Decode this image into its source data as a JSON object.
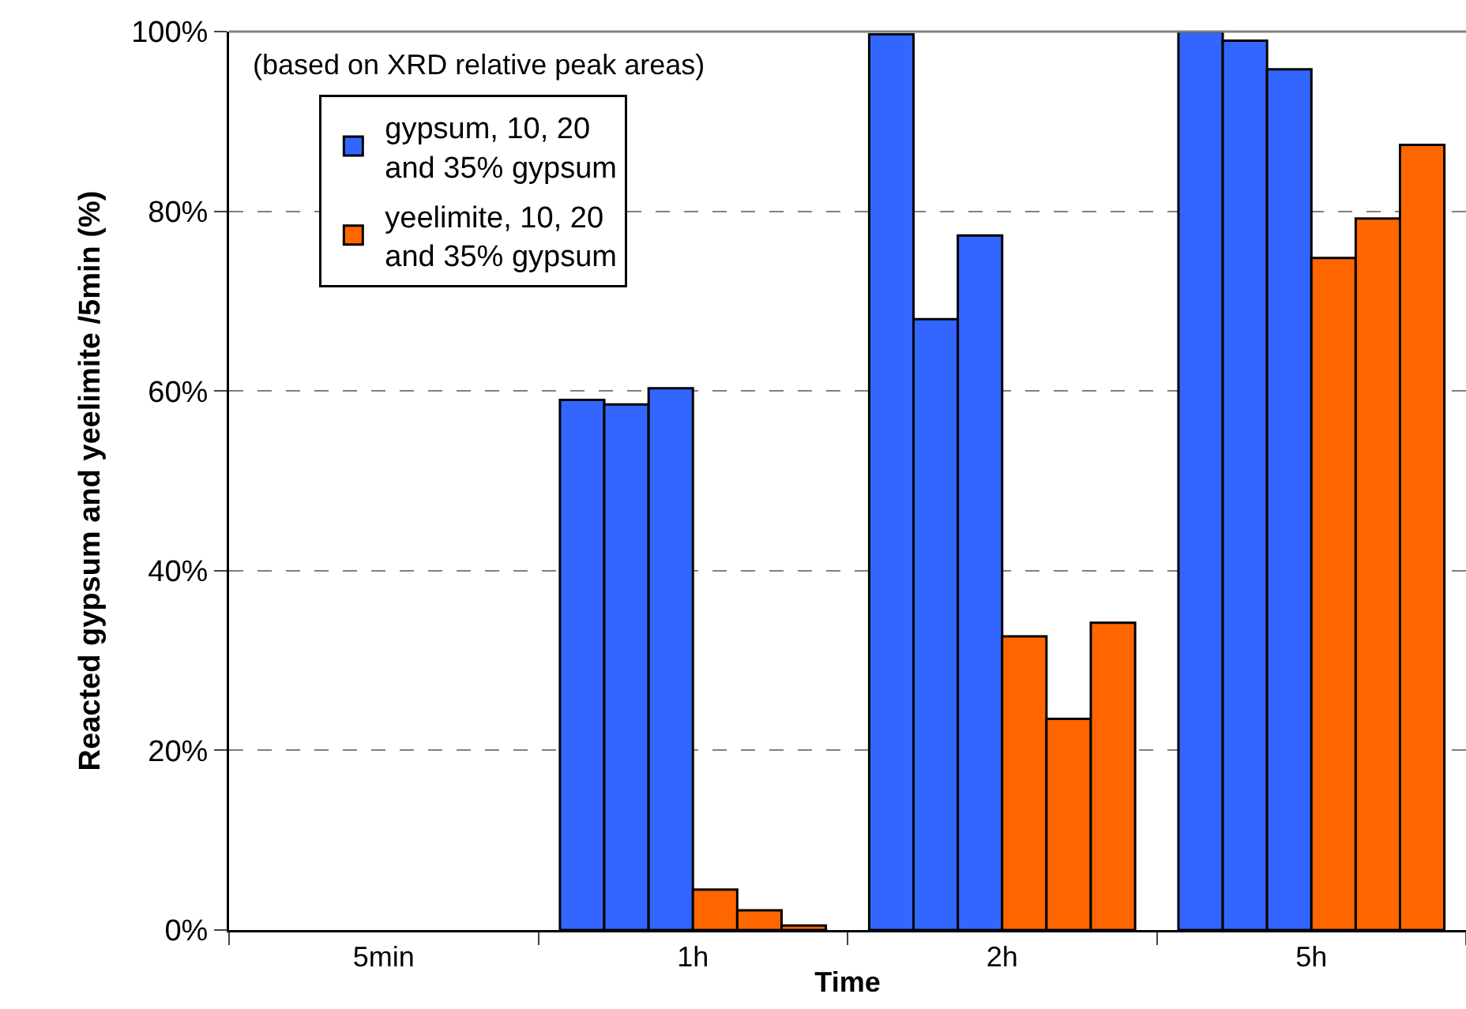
{
  "chart_data": {
    "type": "bar",
    "xlabel": "Time",
    "ylabel": "Reacted gypsum and yeelimite /5min (%)",
    "categories": [
      "5min",
      "1h",
      "2h",
      "5h"
    ],
    "series": [
      {
        "name": "gypsum, 10, 20 and 35% gypsum",
        "color": "#3366ff",
        "values": [
          null,
          59,
          99.7,
          100
        ]
      },
      {
        "color": "#3366ff",
        "values": [
          null,
          58.5,
          68,
          99
        ]
      },
      {
        "color": "#3366ff",
        "values": [
          null,
          60.3,
          77.3,
          95.8
        ]
      },
      {
        "name": "yeelimite, 10, 20 and 35% gypsum",
        "color": "#ff6600",
        "values": [
          null,
          4.5,
          32.7,
          74.8
        ]
      },
      {
        "color": "#ff6600",
        "values": [
          null,
          2.2,
          23.5,
          79.2
        ]
      },
      {
        "color": "#ff6600",
        "values": [
          null,
          0.5,
          34.2,
          87.4
        ]
      }
    ],
    "ylim": [
      0,
      100
    ],
    "yticks": [
      {
        "value": 0,
        "label": "0%"
      },
      {
        "value": 20,
        "label": "20%"
      },
      {
        "value": 40,
        "label": "40%"
      },
      {
        "value": 60,
        "label": "60%"
      },
      {
        "value": 80,
        "label": "80%"
      },
      {
        "value": 100,
        "label": "100%"
      }
    ],
    "grid": "y",
    "legend": "top left",
    "annotations": [
      "(based on XRD relative peak areas)"
    ]
  }
}
